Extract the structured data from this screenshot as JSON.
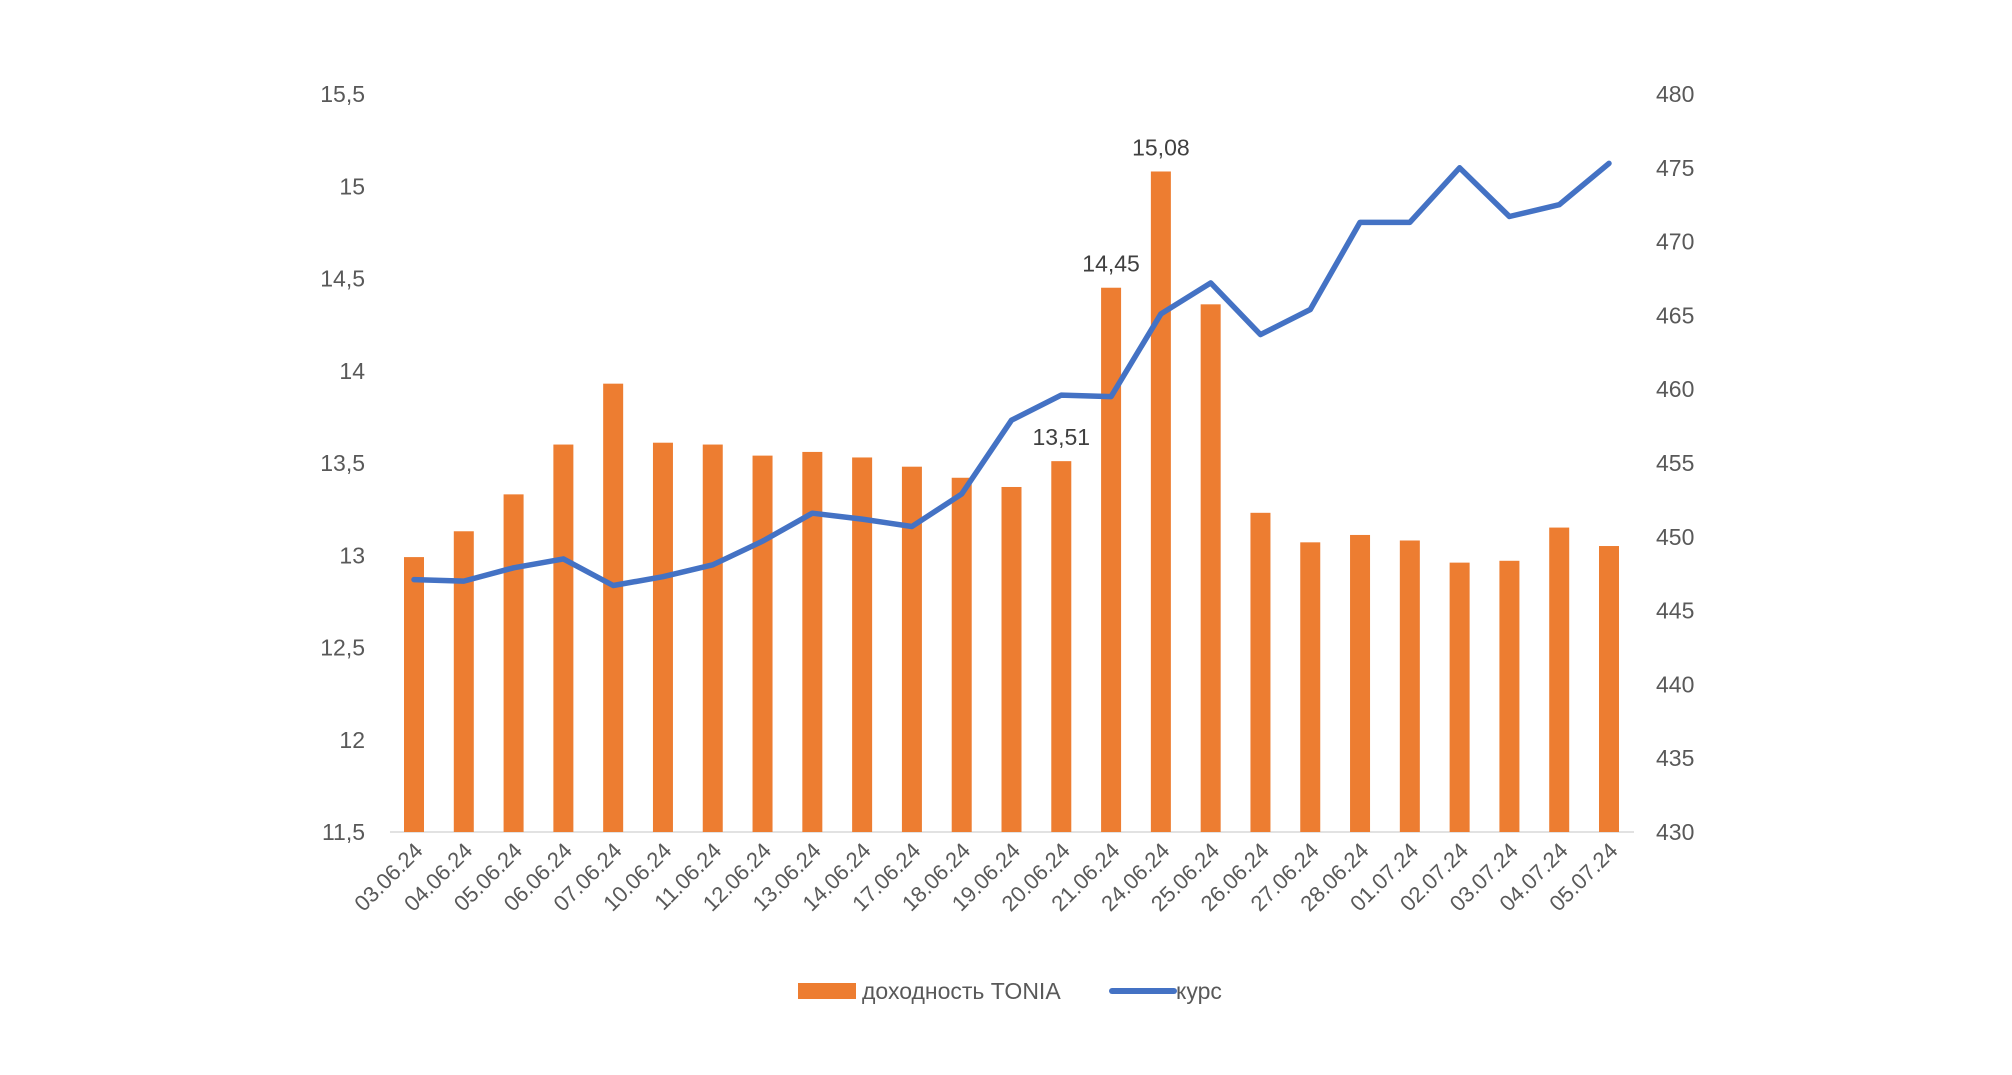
{
  "chart_data": {
    "type": "bar+line",
    "title": "",
    "categories": [
      "03.06.24",
      "04.06.24",
      "05.06.24",
      "06.06.24",
      "07.06.24",
      "10.06.24",
      "11.06.24",
      "12.06.24",
      "13.06.24",
      "14.06.24",
      "17.06.24",
      "18.06.24",
      "19.06.24",
      "20.06.24",
      "21.06.24",
      "24.06.24",
      "25.06.24",
      "26.06.24",
      "27.06.24",
      "28.06.24",
      "01.07.24",
      "02.07.24",
      "03.07.24",
      "04.07.24",
      "05.07.24"
    ],
    "series": [
      {
        "name": "доходность TONIA",
        "type": "bar",
        "axis": "left",
        "color": "#ED7D31",
        "values": [
          12.99,
          13.13,
          13.33,
          13.6,
          13.93,
          13.61,
          13.6,
          13.54,
          13.56,
          13.53,
          13.48,
          13.42,
          13.37,
          13.51,
          14.45,
          15.08,
          14.36,
          13.23,
          13.07,
          13.11,
          13.08,
          12.96,
          12.97,
          13.15,
          13.05
        ]
      },
      {
        "name": "курс",
        "type": "line",
        "axis": "right",
        "color": "#4472C4",
        "values": [
          447.1,
          447.0,
          447.9,
          448.5,
          446.7,
          447.3,
          448.1,
          449.7,
          451.6,
          451.2,
          450.7,
          452.9,
          457.9,
          459.6,
          459.5,
          465.1,
          467.2,
          463.7,
          465.4,
          471.3,
          471.3,
          475.0,
          471.7,
          472.5,
          475.3
        ]
      }
    ],
    "data_labels": [
      {
        "category": "20.06.24",
        "text": "13,51"
      },
      {
        "category": "21.06.24",
        "text": "14,45"
      },
      {
        "category": "24.06.24",
        "text": "15,08"
      }
    ],
    "left_axis": {
      "ylim": [
        11.5,
        15.5
      ],
      "ticks": [
        "11,5",
        "12",
        "12,5",
        "13",
        "13,5",
        "14",
        "14,5",
        "15",
        "15,5"
      ]
    },
    "right_axis": {
      "ylim": [
        430,
        480
      ],
      "ticks": [
        "430",
        "435",
        "440",
        "445",
        "450",
        "455",
        "460",
        "465",
        "470",
        "475",
        "480"
      ]
    },
    "grid": false,
    "legend_position": "bottom"
  }
}
